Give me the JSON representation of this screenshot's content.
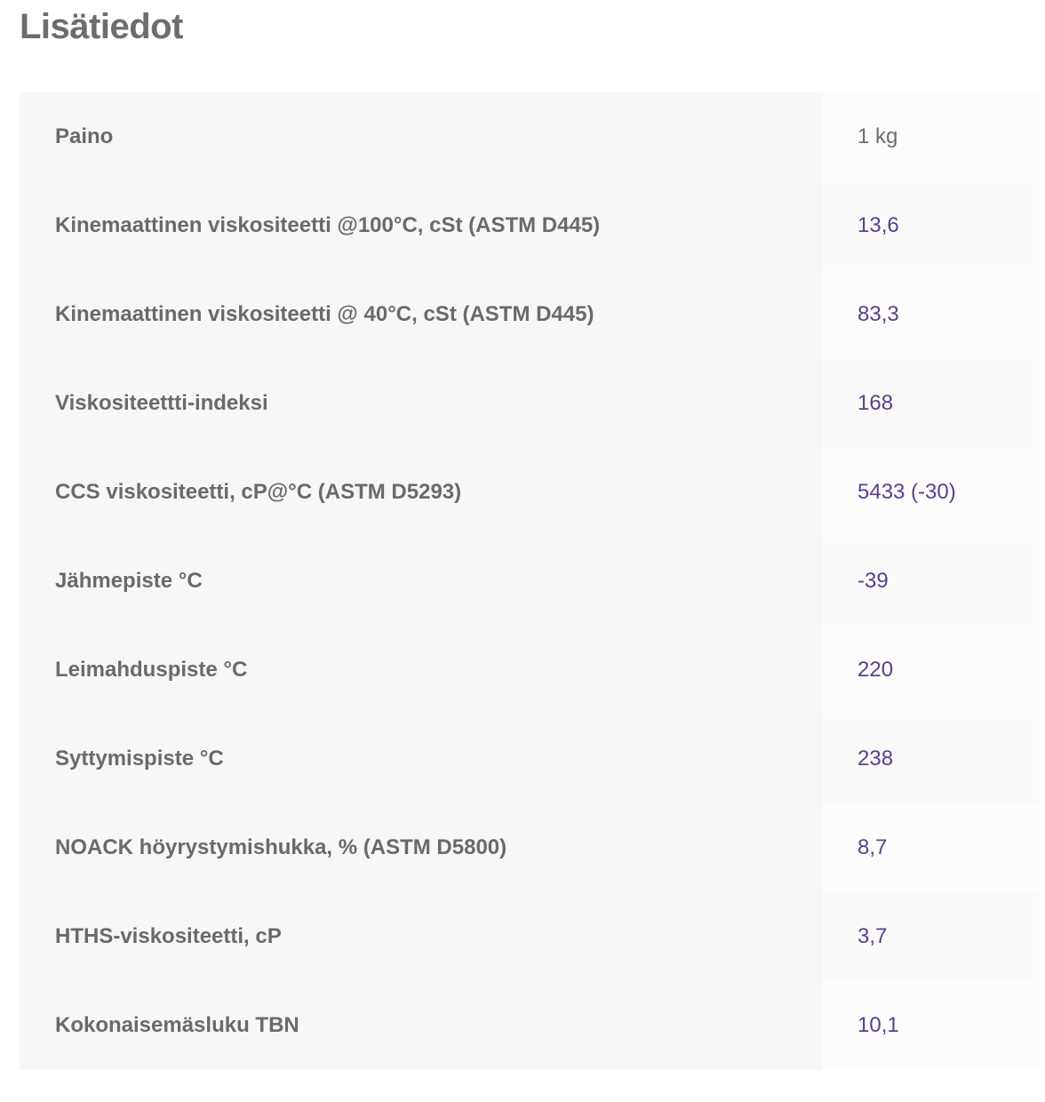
{
  "title": "Lisätiedot",
  "link_color": "#5b3f8c",
  "rows": [
    {
      "label": "Paino",
      "value": "1 kg"
    },
    {
      "label": "Kinemaattinen viskositeetti @100°C, cSt (ASTM D445)",
      "value": "13,6"
    },
    {
      "label": "Kinemaattinen viskositeetti @ 40°C, cSt (ASTM D445)",
      "value": "83,3"
    },
    {
      "label": "Viskositeettti-indeksi",
      "value": "168"
    },
    {
      "label": "CCS viskositeetti, cP@°C (ASTM D5293)",
      "value": "5433 (-30)"
    },
    {
      "label": "Jähmepiste °C",
      "value": "-39"
    },
    {
      "label": "Leimahduspiste °C",
      "value": "220"
    },
    {
      "label": "Syttymispiste °C",
      "value": "238"
    },
    {
      "label": "NOACK höyrystymishukka, % (ASTM D5800)",
      "value": "8,7"
    },
    {
      "label": "HTHS-viskositeetti, cP",
      "value": "3,7"
    },
    {
      "label": "Kokonaisemäsluku TBN",
      "value": "10,1"
    }
  ]
}
